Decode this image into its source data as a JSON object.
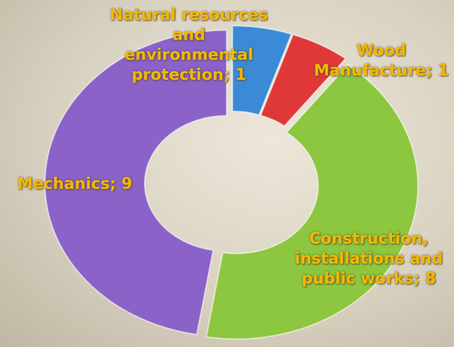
{
  "chart_data": {
    "type": "pie",
    "donut": true,
    "values": [
      1,
      1,
      8,
      9
    ],
    "value_labels": [
      "Natural resources and environmental protection; 1",
      "Wood Manufacture; 1",
      "Construction, installations and public works; 8",
      "Mechanics; 9"
    ],
    "colors": [
      "#3a8ad6",
      "#e03838",
      "#8dc63f",
      "#8b62c8"
    ]
  }
}
